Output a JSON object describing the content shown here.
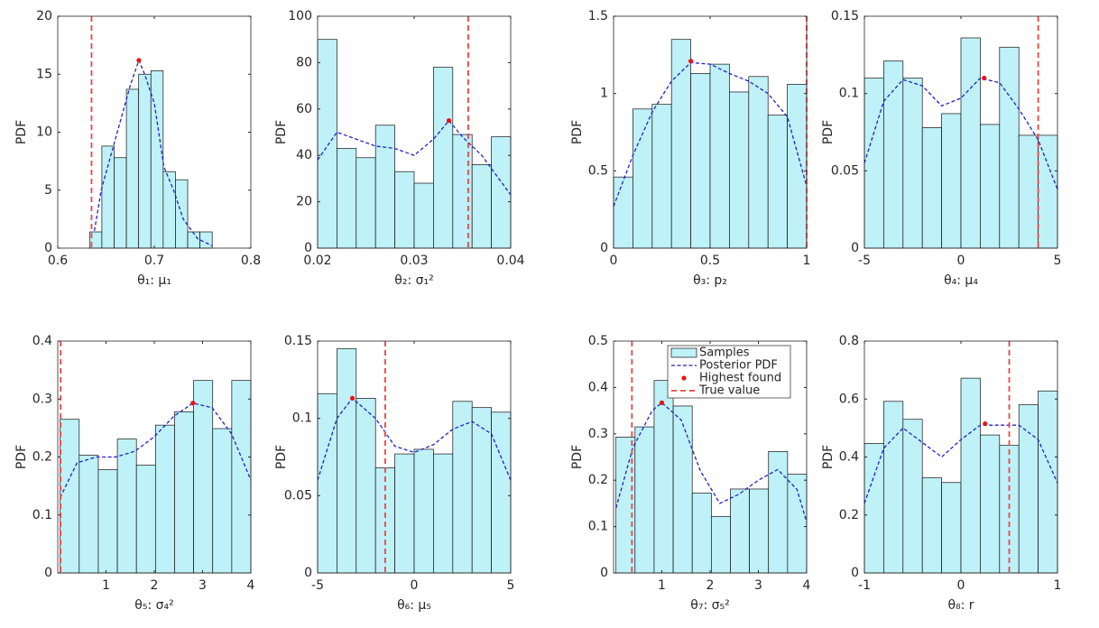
{
  "chart_data": [
    {
      "type": "histogram",
      "xlabel": "θ₁: μ₁",
      "ylabel": "PDF",
      "xlim": [
        0.6,
        0.8
      ],
      "ylim": [
        0,
        20
      ],
      "xticks": [
        0.6,
        0.7,
        0.8
      ],
      "yticks": [
        0,
        5,
        10,
        15,
        20
      ],
      "bins": [
        0.633,
        0.6457,
        0.6584,
        0.6711,
        0.6838,
        0.6965,
        0.7092,
        0.7219,
        0.7346,
        0.7473,
        0.76
      ],
      "counts": [
        1.4,
        8.8,
        7.8,
        13.7,
        15.0,
        15.3,
        6.6,
        5.9,
        1.4,
        1.4
      ],
      "color": "#bff1f8",
      "pdf": {
        "x": [
          0.638,
          0.645,
          0.655,
          0.665,
          0.675,
          0.684,
          0.69,
          0.7,
          0.71,
          0.72,
          0.73,
          0.745,
          0.76
        ],
        "y": [
          1.5,
          5,
          8,
          11,
          14,
          16.2,
          15,
          12.5,
          7,
          5,
          2.5,
          0.8,
          0.2
        ],
        "color": "#2222cc"
      },
      "highest": {
        "x": 0.684,
        "y": 16.2,
        "color": "#ee1111"
      },
      "true_value": {
        "x": 0.635,
        "color": "#ee4444"
      }
    },
    {
      "type": "histogram",
      "xlabel": "θ₂: σ₁²",
      "ylabel": "PDF",
      "xlim": [
        0.02,
        0.04
      ],
      "ylim": [
        0,
        100
      ],
      "xticks": [
        0.02,
        0.03,
        0.04
      ],
      "yticks": [
        0,
        20,
        40,
        60,
        80,
        100
      ],
      "bins": [
        0.02,
        0.022,
        0.024,
        0.026,
        0.028,
        0.03,
        0.032,
        0.034,
        0.036,
        0.038,
        0.04
      ],
      "counts": [
        90,
        43,
        39,
        53,
        33,
        28,
        78,
        49,
        36,
        48
      ],
      "color": "#bff1f8",
      "pdf": {
        "x": [
          0.02,
          0.022,
          0.024,
          0.026,
          0.028,
          0.03,
          0.032,
          0.0336,
          0.035,
          0.037,
          0.04
        ],
        "y": [
          38,
          50,
          47,
          44,
          43,
          40,
          47,
          55,
          48,
          40,
          23
        ],
        "color": "#2222cc"
      },
      "highest": {
        "x": 0.0336,
        "y": 55,
        "color": "#ee1111"
      },
      "true_value": {
        "x": 0.0356,
        "color": "#ee4444"
      }
    },
    {
      "type": "histogram",
      "xlabel": "θ₃: p₂",
      "ylabel": "PDF",
      "xlim": [
        0,
        1
      ],
      "ylim": [
        0,
        1.5
      ],
      "xticks": [
        0,
        0.5,
        1
      ],
      "yticks": [
        0,
        0.5,
        1,
        1.5
      ],
      "bins": [
        0,
        0.1,
        0.2,
        0.3,
        0.4,
        0.5,
        0.6,
        0.7,
        0.8,
        0.9,
        1
      ],
      "counts": [
        0.46,
        0.9,
        0.93,
        1.35,
        1.13,
        1.19,
        1.01,
        1.11,
        0.86,
        1.06
      ],
      "color": "#bff1f8",
      "pdf": {
        "x": [
          0,
          0.1,
          0.2,
          0.3,
          0.4,
          0.5,
          0.6,
          0.7,
          0.8,
          0.9,
          1
        ],
        "y": [
          0.27,
          0.6,
          0.88,
          1.08,
          1.2,
          1.19,
          1.13,
          1.08,
          1.0,
          0.85,
          0.4
        ],
        "color": "#2222cc"
      },
      "highest": {
        "x": 0.4,
        "y": 1.21,
        "color": "#ee1111"
      },
      "true_value": {
        "x": 1,
        "color": "#ee4444"
      }
    },
    {
      "type": "histogram",
      "xlabel": "θ₄: μ₄",
      "ylabel": "PDF",
      "xlim": [
        -5,
        5
      ],
      "ylim": [
        0,
        0.15
      ],
      "xticks": [
        -5,
        0,
        5
      ],
      "yticks": [
        0,
        0.05,
        0.1,
        0.15
      ],
      "bins": [
        -5,
        -4,
        -3,
        -2,
        -1,
        0,
        1,
        2,
        3,
        4,
        5
      ],
      "counts": [
        0.11,
        0.121,
        0.11,
        0.078,
        0.087,
        0.136,
        0.08,
        0.13,
        0.073,
        0.073
      ],
      "color": "#bff1f8",
      "pdf": {
        "x": [
          -5,
          -4,
          -3,
          -2,
          -1,
          0,
          1,
          2,
          3,
          4,
          5
        ],
        "y": [
          0.055,
          0.095,
          0.109,
          0.105,
          0.092,
          0.097,
          0.11,
          0.107,
          0.09,
          0.07,
          0.038
        ],
        "color": "#2222cc"
      },
      "highest": {
        "x": 1.2,
        "y": 0.11,
        "color": "#ee1111"
      },
      "true_value": {
        "x": 4,
        "color": "#ee4444"
      }
    },
    {
      "type": "histogram",
      "xlabel": "θ₅: σ₄²",
      "ylabel": "PDF",
      "xlim": [
        0,
        4
      ],
      "ylim": [
        0,
        0.4
      ],
      "xticks": [
        1,
        2,
        3,
        4
      ],
      "yticks": [
        0,
        0.1,
        0.2,
        0.3,
        0.4
      ],
      "bins": [
        0.05,
        0.445,
        0.84,
        1.235,
        1.63,
        2.025,
        2.42,
        2.815,
        3.21,
        3.605,
        4
      ],
      "counts": [
        0.265,
        0.203,
        0.178,
        0.231,
        0.186,
        0.255,
        0.278,
        0.332,
        0.249,
        0.332
      ],
      "color": "#bff1f8",
      "pdf": {
        "x": [
          0.05,
          0.4,
          0.8,
          1.2,
          1.6,
          2,
          2.4,
          2.8,
          3.2,
          3.6,
          4
        ],
        "y": [
          0.13,
          0.19,
          0.2,
          0.2,
          0.21,
          0.235,
          0.27,
          0.293,
          0.285,
          0.24,
          0.16
        ],
        "color": "#2222cc"
      },
      "highest": {
        "x": 2.8,
        "y": 0.293,
        "color": "#ee1111"
      },
      "true_value": {
        "x": 0.06,
        "color": "#ee4444"
      }
    },
    {
      "type": "histogram",
      "xlabel": "θ₆: μ₅",
      "ylabel": "PDF",
      "xlim": [
        -5,
        5
      ],
      "ylim": [
        0,
        0.15
      ],
      "xticks": [
        -5,
        0,
        5
      ],
      "yticks": [
        0,
        0.05,
        0.1,
        0.15
      ],
      "bins": [
        -5,
        -4,
        -3,
        -2,
        -1,
        0,
        1,
        2,
        3,
        4,
        5
      ],
      "counts": [
        0.116,
        0.145,
        0.113,
        0.068,
        0.077,
        0.08,
        0.077,
        0.111,
        0.107,
        0.104
      ],
      "color": "#bff1f8",
      "pdf": {
        "x": [
          -5,
          -4,
          -3.2,
          -2,
          -1,
          0,
          1,
          2,
          3,
          4,
          5
        ],
        "y": [
          0.06,
          0.1,
          0.113,
          0.1,
          0.082,
          0.078,
          0.083,
          0.093,
          0.098,
          0.09,
          0.06
        ],
        "color": "#2222cc"
      },
      "highest": {
        "x": -3.2,
        "y": 0.113,
        "color": "#ee1111"
      },
      "true_value": {
        "x": -1.5,
        "color": "#ee4444"
      }
    },
    {
      "type": "histogram",
      "xlabel": "θ₇: σ₅²",
      "ylabel": "PDF",
      "xlim": [
        0,
        4
      ],
      "ylim": [
        0,
        0.5
      ],
      "xticks": [
        1,
        2,
        3,
        4
      ],
      "yticks": [
        0,
        0.1,
        0.2,
        0.3,
        0.4,
        0.5
      ],
      "bins": [
        0.05,
        0.445,
        0.84,
        1.235,
        1.63,
        2.025,
        2.42,
        2.815,
        3.21,
        3.605,
        4
      ],
      "counts": [
        0.293,
        0.315,
        0.415,
        0.36,
        0.172,
        0.122,
        0.181,
        0.181,
        0.262,
        0.213
      ],
      "color": "#bff1f8",
      "pdf": {
        "x": [
          0.05,
          0.4,
          0.8,
          1,
          1.4,
          1.8,
          2.2,
          2.6,
          3,
          3.4,
          3.8,
          4
        ],
        "y": [
          0.14,
          0.27,
          0.35,
          0.367,
          0.33,
          0.22,
          0.15,
          0.17,
          0.2,
          0.223,
          0.18,
          0.11
        ],
        "color": "#2222cc"
      },
      "highest": {
        "x": 1,
        "y": 0.367,
        "color": "#ee1111"
      },
      "true_value": {
        "x": 0.38,
        "color": "#ee4444"
      },
      "legend": [
        "Samples",
        "Posterior PDF",
        "Highest found",
        "True value"
      ],
      "legend_position": "northeast"
    },
    {
      "type": "histogram",
      "xlabel": "θ₈: r",
      "ylabel": "PDF",
      "xlim": [
        -1,
        1
      ],
      "ylim": [
        0,
        0.8
      ],
      "xticks": [
        -1,
        0,
        1
      ],
      "yticks": [
        0,
        0.2,
        0.4,
        0.6,
        0.8
      ],
      "bins": [
        -1,
        -0.8,
        -0.6,
        -0.4,
        -0.2,
        0,
        0.2,
        0.4,
        0.6,
        0.8,
        1
      ],
      "counts": [
        0.447,
        0.592,
        0.53,
        0.328,
        0.312,
        0.672,
        0.476,
        0.44,
        0.58,
        0.628
      ],
      "color": "#bff1f8",
      "pdf": {
        "x": [
          -1,
          -0.8,
          -0.6,
          -0.4,
          -0.2,
          0,
          0.2,
          0.4,
          0.6,
          0.8,
          1
        ],
        "y": [
          0.24,
          0.43,
          0.5,
          0.45,
          0.4,
          0.46,
          0.51,
          0.51,
          0.51,
          0.46,
          0.31
        ],
        "color": "#2222cc"
      },
      "highest": {
        "x": 0.25,
        "y": 0.515,
        "color": "#ee1111"
      },
      "true_value": {
        "x": 0.5,
        "color": "#ee4444"
      }
    }
  ]
}
